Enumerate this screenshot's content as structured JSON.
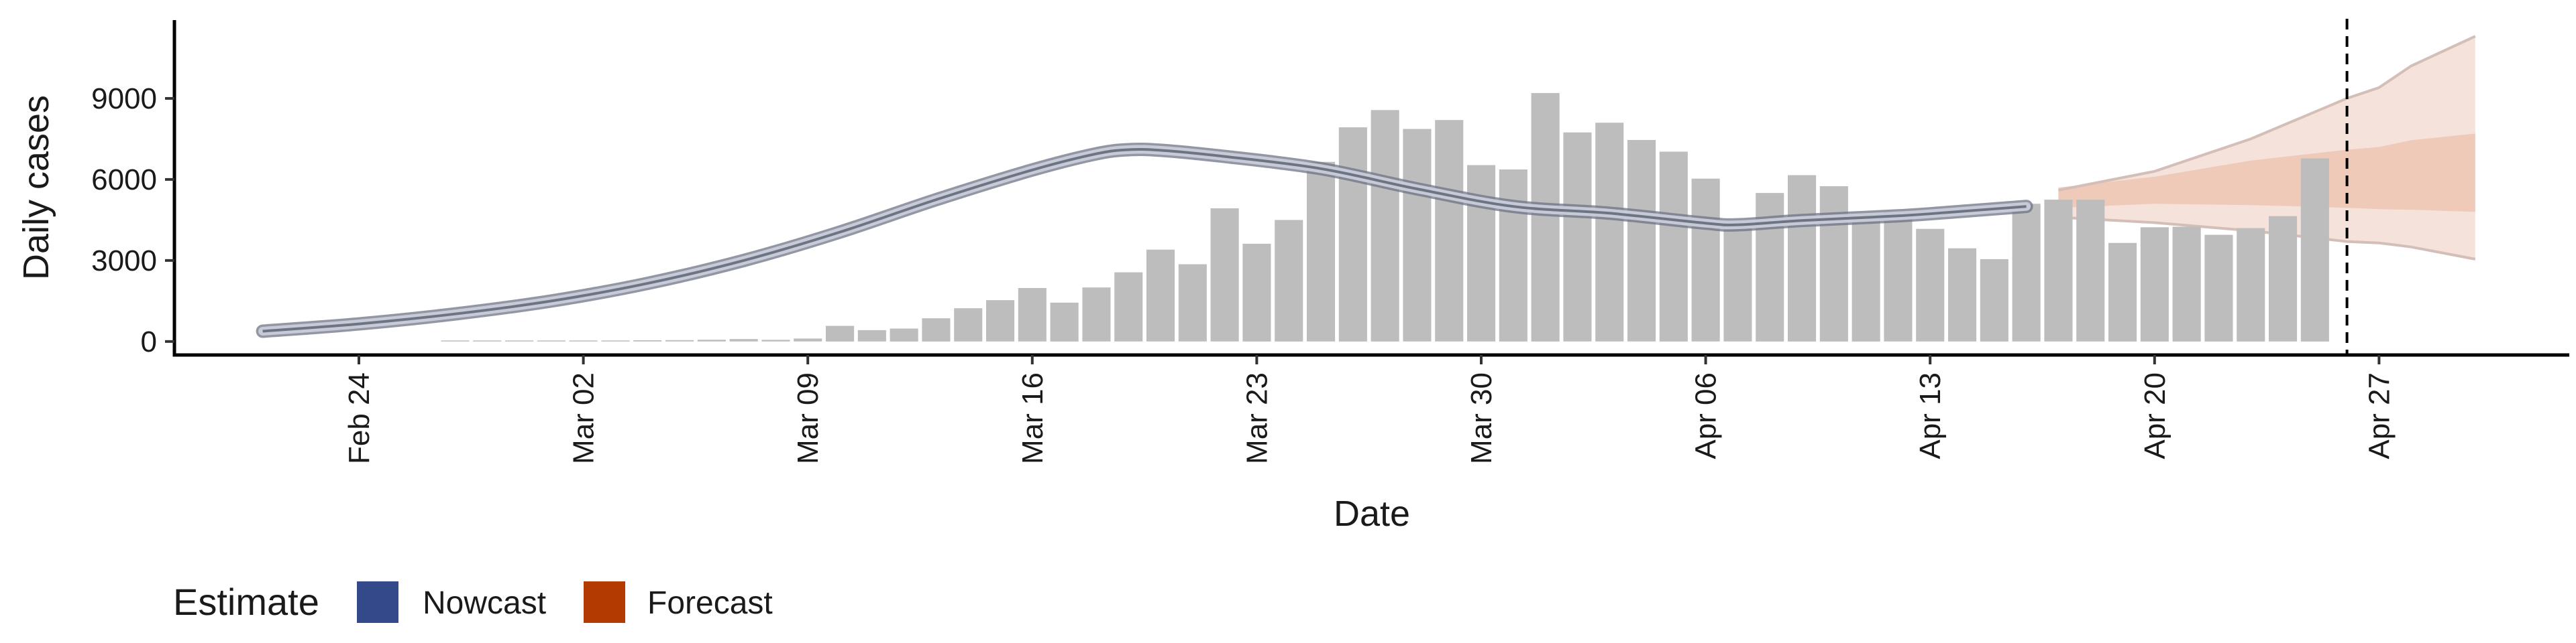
{
  "chart_data": {
    "type": "bar",
    "xlabel": "Date",
    "ylabel": "Daily cases",
    "x_ticks": [
      "Feb 24",
      "Mar 02",
      "Mar 09",
      "Mar 16",
      "Mar 23",
      "Mar 30",
      "Apr 06",
      "Apr 13",
      "Apr 20",
      "Apr 27"
    ],
    "y_ticks": [
      "0",
      "3000",
      "6000",
      "9000"
    ],
    "ylim": [
      -500,
      11900
    ],
    "grid": false,
    "legend": {
      "title": "Estimate",
      "position": "bottom-left",
      "entries": [
        {
          "label": "Nowcast",
          "color": "#34498a"
        },
        {
          "label": "Forecast",
          "color": "#b33a00"
        }
      ]
    },
    "vline_date": "Apr 26",
    "colors": {
      "bars": "#bdbdbd",
      "nowcast_line": "#6f7484",
      "nowcast_band": "#c9ceda",
      "forecast_outer": "#f3ddd3",
      "forecast_inner": "#edc2ae",
      "forecast_line": "#d3bfb8"
    },
    "bars": [
      {
        "date": "Feb 27",
        "value": 15
      },
      {
        "date": "Feb 28",
        "value": 10
      },
      {
        "date": "Feb 29",
        "value": 20
      },
      {
        "date": "Mar 01",
        "value": 25
      },
      {
        "date": "Mar 02",
        "value": 30
      },
      {
        "date": "Mar 03",
        "value": 35
      },
      {
        "date": "Mar 04",
        "value": 45
      },
      {
        "date": "Mar 05",
        "value": 50
      },
      {
        "date": "Mar 06",
        "value": 65
      },
      {
        "date": "Mar 07",
        "value": 90
      },
      {
        "date": "Mar 08",
        "value": 60
      },
      {
        "date": "Mar 09",
        "value": 110
      },
      {
        "date": "Mar 10",
        "value": 580
      },
      {
        "date": "Mar 11",
        "value": 420
      },
      {
        "date": "Mar 12",
        "value": 480
      },
      {
        "date": "Mar 13",
        "value": 860
      },
      {
        "date": "Mar 14",
        "value": 1230
      },
      {
        "date": "Mar 15",
        "value": 1530
      },
      {
        "date": "Mar 16",
        "value": 1980
      },
      {
        "date": "Mar 17",
        "value": 1440
      },
      {
        "date": "Mar 18",
        "value": 2000
      },
      {
        "date": "Mar 19",
        "value": 2560
      },
      {
        "date": "Mar 20",
        "value": 3400
      },
      {
        "date": "Mar 21",
        "value": 2860
      },
      {
        "date": "Mar 22",
        "value": 4930
      },
      {
        "date": "Mar 23",
        "value": 3620
      },
      {
        "date": "Mar 24",
        "value": 4500
      },
      {
        "date": "Mar 25",
        "value": 6650
      },
      {
        "date": "Mar 26",
        "value": 7930
      },
      {
        "date": "Mar 27",
        "value": 8570
      },
      {
        "date": "Mar 28",
        "value": 7870
      },
      {
        "date": "Mar 29",
        "value": 8200
      },
      {
        "date": "Mar 30",
        "value": 6530
      },
      {
        "date": "Mar 31",
        "value": 6370
      },
      {
        "date": "Apr 01",
        "value": 9200
      },
      {
        "date": "Apr 02",
        "value": 7740
      },
      {
        "date": "Apr 03",
        "value": 8100
      },
      {
        "date": "Apr 04",
        "value": 7460
      },
      {
        "date": "Apr 05",
        "value": 7030
      },
      {
        "date": "Apr 06",
        "value": 6030
      },
      {
        "date": "Apr 07",
        "value": 4320
      },
      {
        "date": "Apr 08",
        "value": 5500
      },
      {
        "date": "Apr 09",
        "value": 6160
      },
      {
        "date": "Apr 10",
        "value": 5750
      },
      {
        "date": "Apr 11",
        "value": 4580
      },
      {
        "date": "Apr 12",
        "value": 4800
      },
      {
        "date": "Apr 13",
        "value": 4170
      },
      {
        "date": "Apr 14",
        "value": 3450
      },
      {
        "date": "Apr 15",
        "value": 3050
      },
      {
        "date": "Apr 16",
        "value": 5100
      },
      {
        "date": "Apr 17",
        "value": 5250
      },
      {
        "date": "Apr 18",
        "value": 5250
      },
      {
        "date": "Apr 19",
        "value": 3650
      },
      {
        "date": "Apr 20",
        "value": 4230
      },
      {
        "date": "Apr 21",
        "value": 4250
      },
      {
        "date": "Apr 22",
        "value": 3950
      },
      {
        "date": "Apr 23",
        "value": 4200
      },
      {
        "date": "Apr 24",
        "value": 4640
      },
      {
        "date": "Apr 25",
        "value": 6780
      }
    ],
    "nowcast": [
      {
        "date": "Feb 21",
        "value": 380
      },
      {
        "date": "Feb 24",
        "value": 650
      },
      {
        "date": "Feb 27",
        "value": 1020
      },
      {
        "date": "Mar 01",
        "value": 1500
      },
      {
        "date": "Mar 04",
        "value": 2150
      },
      {
        "date": "Mar 07",
        "value": 3000
      },
      {
        "date": "Mar 10",
        "value": 4050
      },
      {
        "date": "Mar 13",
        "value": 5250
      },
      {
        "date": "Mar 16",
        "value": 6350
      },
      {
        "date": "Mar 18",
        "value": 6950
      },
      {
        "date": "Mar 19",
        "value": 7100
      },
      {
        "date": "Mar 20",
        "value": 7080
      },
      {
        "date": "Mar 22",
        "value": 6850
      },
      {
        "date": "Mar 25",
        "value": 6400
      },
      {
        "date": "Mar 28",
        "value": 5650
      },
      {
        "date": "Mar 31",
        "value": 5000
      },
      {
        "date": "Apr 03",
        "value": 4750
      },
      {
        "date": "Apr 06",
        "value": 4380
      },
      {
        "date": "Apr 07",
        "value": 4320
      },
      {
        "date": "Apr 09",
        "value": 4480
      },
      {
        "date": "Apr 12",
        "value": 4650
      },
      {
        "date": "Apr 14",
        "value": 4820
      },
      {
        "date": "Apr 16",
        "value": 5000
      }
    ],
    "forecast": [
      {
        "date": "Apr 17",
        "lower_outer": 4600,
        "lower_inner": 4950,
        "upper_inner": 5700,
        "upper_outer": 5600
      },
      {
        "date": "Apr 20",
        "lower_outer": 4400,
        "lower_inner": 5100,
        "upper_inner": 6100,
        "upper_outer": 6300
      },
      {
        "date": "Apr 23",
        "lower_outer": 4100,
        "lower_inner": 5050,
        "upper_inner": 6700,
        "upper_outer": 7500
      },
      {
        "date": "Apr 26",
        "lower_outer": 3700,
        "lower_inner": 4950,
        "upper_inner": 7100,
        "upper_outer": 9000
      },
      {
        "date": "Apr 27",
        "lower_outer": 3650,
        "lower_inner": 4900,
        "upper_inner": 7200,
        "upper_outer": 9400
      },
      {
        "date": "Apr 28",
        "lower_outer": 3500,
        "lower_inner": 4880,
        "upper_inner": 7450,
        "upper_outer": 10200
      },
      {
        "date": "Apr 30",
        "lower_outer": 3050,
        "lower_inner": 4800,
        "upper_inner": 7700,
        "upper_outer": 11300
      }
    ]
  }
}
